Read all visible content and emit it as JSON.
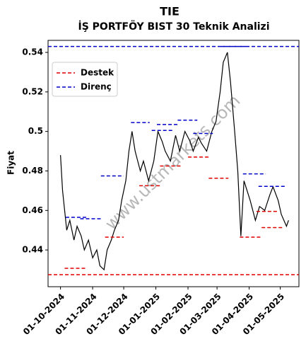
{
  "chart_data": {
    "type": "line",
    "title": "TIE",
    "subtitle": "İŞ PORTFÖY BIST 30 Teknik Analizi",
    "ylabel": "Fiyat",
    "watermark": "www.ustmarkets.com",
    "xlim": [
      "2024-09-19",
      "2025-05-19"
    ],
    "ylim": [
      0.4214,
      0.5461
    ],
    "xticks": [
      {
        "value": "2024-10-01",
        "label": "01-10-2024"
      },
      {
        "value": "2024-11-01",
        "label": "01-11-2024"
      },
      {
        "value": "2024-12-01",
        "label": "01-12-2024"
      },
      {
        "value": "2025-01-01",
        "label": "01-01-2025"
      },
      {
        "value": "2025-02-01",
        "label": "01-02-2025"
      },
      {
        "value": "2025-03-01",
        "label": "01-03-2025"
      },
      {
        "value": "2025-04-01",
        "label": "01-04-2025"
      },
      {
        "value": "2025-05-01",
        "label": "01-05-2025"
      }
    ],
    "yticks": [
      0.44,
      0.46,
      0.48,
      0.5,
      0.52,
      0.54
    ],
    "legend": "upper left",
    "series": [
      {
        "name": "Fiyat",
        "color": "#000000",
        "x": [
          "2024-10-01",
          "2024-10-03",
          "2024-10-07",
          "2024-10-10",
          "2024-10-14",
          "2024-10-17",
          "2024-10-21",
          "2024-10-24",
          "2024-10-28",
          "2024-11-01",
          "2024-11-05",
          "2024-11-08",
          "2024-11-12",
          "2024-11-15",
          "2024-11-19",
          "2024-11-22",
          "2024-11-26",
          "2024-11-29",
          "2024-12-03",
          "2024-12-06",
          "2024-12-09",
          "2024-12-12",
          "2024-12-17",
          "2024-12-20",
          "2024-12-25",
          "2024-12-30",
          "2025-01-03",
          "2025-01-07",
          "2025-01-10",
          "2025-01-15",
          "2025-01-20",
          "2025-01-24",
          "2025-01-29",
          "2025-02-03",
          "2025-02-06",
          "2025-02-11",
          "2025-02-14",
          "2025-02-19",
          "2025-02-24",
          "2025-02-28",
          "2025-03-04",
          "2025-03-07",
          "2025-03-11",
          "2025-03-14",
          "2025-03-18",
          "2025-03-21",
          "2025-03-24",
          "2025-03-27",
          "2025-04-02",
          "2025-04-07",
          "2025-04-11",
          "2025-04-16",
          "2025-04-21",
          "2025-04-24",
          "2025-04-29",
          "2025-05-02",
          "2025-05-07",
          "2025-05-09"
        ],
        "values": [
          0.488,
          0.47,
          0.45,
          0.455,
          0.445,
          0.452,
          0.447,
          0.44,
          0.445,
          0.436,
          0.44,
          0.432,
          0.43,
          0.44,
          0.445,
          0.45,
          0.455,
          0.465,
          0.475,
          0.49,
          0.5,
          0.49,
          0.48,
          0.485,
          0.475,
          0.485,
          0.5,
          0.495,
          0.49,
          0.485,
          0.498,
          0.49,
          0.5,
          0.495,
          0.49,
          0.497,
          0.494,
          0.49,
          0.5,
          0.505,
          0.52,
          0.535,
          0.54,
          0.525,
          0.5,
          0.48,
          0.447,
          0.475,
          0.465,
          0.455,
          0.462,
          0.46,
          0.468,
          0.472,
          0.465,
          0.458,
          0.452,
          0.455
        ]
      }
    ],
    "support": {
      "name": "Destek",
      "color": "#e00000",
      "levels": [
        {
          "start": "2024-09-19",
          "end": "2025-05-19",
          "value": 0.4275
        },
        {
          "start": "2024-10-05",
          "end": "2024-10-25",
          "value": 0.4307
        },
        {
          "start": "2024-11-13",
          "end": "2024-12-01",
          "value": 0.4465
        },
        {
          "start": "2024-12-16",
          "end": "2025-01-05",
          "value": 0.4725
        },
        {
          "start": "2025-01-05",
          "end": "2025-01-26",
          "value": 0.4825
        },
        {
          "start": "2025-02-01",
          "end": "2025-02-21",
          "value": 0.487
        },
        {
          "start": "2025-02-21",
          "end": "2025-03-12",
          "value": 0.4763
        },
        {
          "start": "2025-03-23",
          "end": "2025-04-12",
          "value": 0.4465
        },
        {
          "start": "2025-04-08",
          "end": "2025-04-28",
          "value": 0.4595
        },
        {
          "start": "2025-04-13",
          "end": "2025-05-04",
          "value": 0.4513
        }
      ]
    },
    "resistance": {
      "name": "Direnç",
      "color": "#0000c8",
      "levels": [
        {
          "start": "2024-09-19",
          "end": "2025-05-19",
          "value": 0.543
        },
        {
          "start": "2024-10-06",
          "end": "2024-10-26",
          "value": 0.4565
        },
        {
          "start": "2024-10-20",
          "end": "2024-11-10",
          "value": 0.4558
        },
        {
          "start": "2024-11-09",
          "end": "2024-12-01",
          "value": 0.4775
        },
        {
          "start": "2024-12-08",
          "end": "2024-12-26",
          "value": 0.5045
        },
        {
          "start": "2024-12-28",
          "end": "2025-01-18",
          "value": 0.5005
        },
        {
          "start": "2025-01-02",
          "end": "2025-01-22",
          "value": 0.5035
        },
        {
          "start": "2025-01-22",
          "end": "2025-02-10",
          "value": 0.5057
        },
        {
          "start": "2025-02-06",
          "end": "2025-02-25",
          "value": 0.499
        },
        {
          "start": "2025-03-05",
          "end": "2025-03-29",
          "value": 0.543
        },
        {
          "start": "2025-03-26",
          "end": "2025-04-17",
          "value": 0.4785
        },
        {
          "start": "2025-04-10",
          "end": "2025-05-07",
          "value": 0.4722
        }
      ]
    }
  }
}
